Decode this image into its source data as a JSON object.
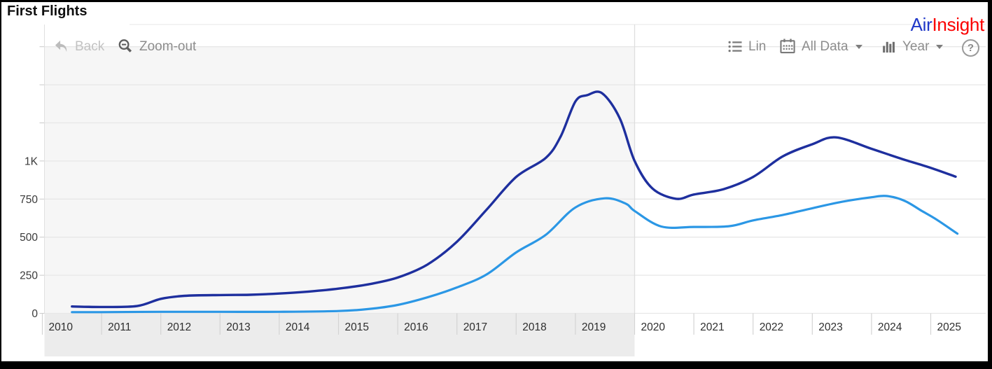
{
  "header": {
    "title": "First Flights"
  },
  "brand": {
    "air": "Air",
    "insight": "Insight",
    "air_color": "#2038c8",
    "insight_color": "#fb0000"
  },
  "toolbar": {
    "back": "Back",
    "zoom_out": "Zoom-out",
    "lin": "Lin",
    "all_data": "All Data",
    "year": "Year",
    "help": "?"
  },
  "chart_data": {
    "type": "line",
    "title": "First Flights",
    "xlabel": "",
    "ylabel": "",
    "x_axis": {
      "ticks": [
        2010,
        2011,
        2012,
        2013,
        2014,
        2015,
        2016,
        2017,
        2018,
        2019,
        2020,
        2021,
        2022,
        2023,
        2024,
        2025
      ],
      "range": [
        2010,
        2025.9
      ],
      "label_color": "#2e2e2e"
    },
    "y_axis": {
      "ticks": [
        {
          "value": 0,
          "label": "0"
        },
        {
          "value": 250,
          "label": "250"
        },
        {
          "value": 500,
          "label": "500"
        },
        {
          "value": 750,
          "label": "750"
        },
        {
          "value": 1000,
          "label": "1K"
        },
        {
          "value": 1250,
          "label": ""
        },
        {
          "value": 1500,
          "label": ""
        },
        {
          "value": 1750,
          "label": ""
        }
      ],
      "range": [
        0,
        1895
      ],
      "label_color": "#3a3a3a"
    },
    "grid": true,
    "grid_color": "#e7e7e7",
    "tick_color": "#d4d4d4",
    "axis_line_color": "#e0e0e0",
    "legend": "none",
    "highlight_region": {
      "from": 2010,
      "to": 2020,
      "plot_color": "#f6f6f6",
      "axis_strip_color": "#ececec",
      "boundary_line_color": "#dedede"
    },
    "series": [
      {
        "name": "navy",
        "color": "#1e2f9e",
        "stroke_width": 3.4,
        "points": [
          [
            2010.5,
            45
          ],
          [
            2011,
            42
          ],
          [
            2011.6,
            48
          ],
          [
            2012,
            95
          ],
          [
            2012.4,
            115
          ],
          [
            2013,
            120
          ],
          [
            2013.5,
            122
          ],
          [
            2014,
            130
          ],
          [
            2014.5,
            143
          ],
          [
            2015,
            162
          ],
          [
            2015.5,
            190
          ],
          [
            2016,
            235
          ],
          [
            2016.5,
            320
          ],
          [
            2017,
            470
          ],
          [
            2017.5,
            680
          ],
          [
            2018,
            895
          ],
          [
            2018.5,
            1020
          ],
          [
            2018.75,
            1160
          ],
          [
            2019,
            1390
          ],
          [
            2019.2,
            1432
          ],
          [
            2019.45,
            1445
          ],
          [
            2019.75,
            1280
          ],
          [
            2020,
            1000
          ],
          [
            2020.3,
            820
          ],
          [
            2020.7,
            752
          ],
          [
            2021,
            780
          ],
          [
            2021.5,
            815
          ],
          [
            2022,
            895
          ],
          [
            2022.5,
            1030
          ],
          [
            2023,
            1110
          ],
          [
            2023.4,
            1155
          ],
          [
            2024,
            1080
          ],
          [
            2024.5,
            1015
          ],
          [
            2025,
            955
          ],
          [
            2025.42,
            897
          ]
        ]
      },
      {
        "name": "light_blue",
        "color": "#2b97e5",
        "stroke_width": 3.2,
        "points": [
          [
            2010.5,
            8
          ],
          [
            2011,
            8
          ],
          [
            2012,
            10
          ],
          [
            2013,
            10
          ],
          [
            2014,
            10
          ],
          [
            2015,
            15
          ],
          [
            2015.5,
            28
          ],
          [
            2016,
            55
          ],
          [
            2016.5,
            105
          ],
          [
            2017,
            170
          ],
          [
            2017.5,
            255
          ],
          [
            2018,
            400
          ],
          [
            2018.5,
            515
          ],
          [
            2019,
            695
          ],
          [
            2019.5,
            755
          ],
          [
            2019.85,
            720
          ],
          [
            2020,
            672
          ],
          [
            2020.45,
            570
          ],
          [
            2021,
            567
          ],
          [
            2021.6,
            572
          ],
          [
            2022,
            610
          ],
          [
            2022.5,
            645
          ],
          [
            2023,
            690
          ],
          [
            2023.5,
            732
          ],
          [
            2024,
            762
          ],
          [
            2024.25,
            770
          ],
          [
            2024.55,
            740
          ],
          [
            2024.85,
            672
          ],
          [
            2025.1,
            615
          ],
          [
            2025.45,
            523
          ]
        ]
      }
    ]
  }
}
